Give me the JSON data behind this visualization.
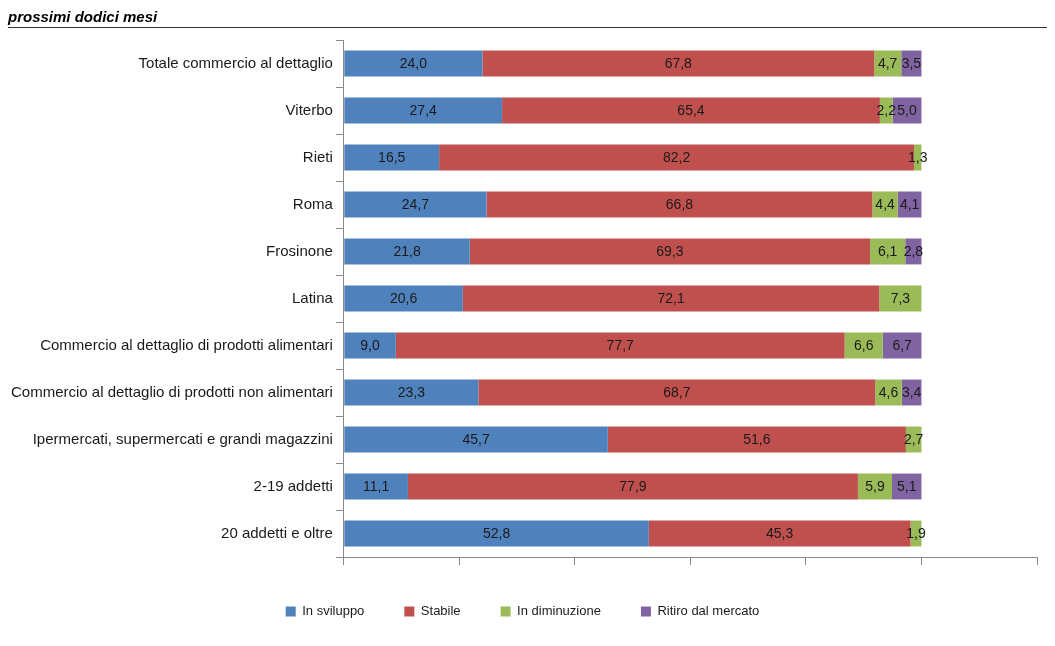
{
  "chart_data": {
    "type": "bar",
    "orientation": "horizontal",
    "stacked": true,
    "title": "prossimi dodici mesi",
    "categories": [
      "Totale commercio al dettaglio",
      "Viterbo",
      "Rieti",
      "Roma",
      "Frosinone",
      "Latina",
      "Commercio al dettaglio di prodotti alimentari",
      "Commercio al dettaglio di prodotti non alimentari",
      "Ipermercati, supermercati e grandi magazzini",
      "2-19 addetti",
      "20 addetti e oltre"
    ],
    "series": [
      {
        "name": "In sviluppo",
        "color": "#4f81bd",
        "values": [
          24.0,
          27.4,
          16.5,
          24.7,
          21.8,
          20.6,
          9.0,
          23.3,
          45.7,
          11.1,
          52.8
        ],
        "value_labels": [
          "24,0",
          "27,4",
          "16,5",
          "24,7",
          "21,8",
          "20,6",
          "9,0",
          "23,3",
          "45,7",
          "11,1",
          "52,8"
        ]
      },
      {
        "name": "Stabile",
        "color": "#c0504d",
        "values": [
          67.8,
          65.4,
          82.2,
          66.8,
          69.3,
          72.1,
          77.7,
          68.7,
          51.6,
          77.9,
          45.3
        ],
        "value_labels": [
          "67,8",
          "65,4",
          "82,2",
          "66,8",
          "69,3",
          "72,1",
          "77,7",
          "68,7",
          "51,6",
          "77,9",
          "45,3"
        ]
      },
      {
        "name": "In diminuzione",
        "color": "#9bbb59",
        "values": [
          4.7,
          2.2,
          1.3,
          4.4,
          6.1,
          7.3,
          6.6,
          4.6,
          2.7,
          5.9,
          1.9
        ],
        "value_labels": [
          "4,7",
          "2,2",
          "1,3",
          "4,4",
          "6,1",
          "7,3",
          "6,6",
          "4,6",
          "2,7",
          "5,9",
          "1,9"
        ]
      },
      {
        "name": "Ritiro dal mercato",
        "color": "#8064a2",
        "values": [
          3.5,
          5.0,
          null,
          4.1,
          2.8,
          null,
          6.7,
          3.4,
          null,
          5.1,
          null
        ],
        "value_labels": [
          "3,5",
          "5,0",
          null,
          "4,1",
          "2,8",
          null,
          "6,7",
          "3,4",
          null,
          "5,1",
          null
        ]
      }
    ],
    "tick_labels": "y",
    "legend": "bottom"
  }
}
